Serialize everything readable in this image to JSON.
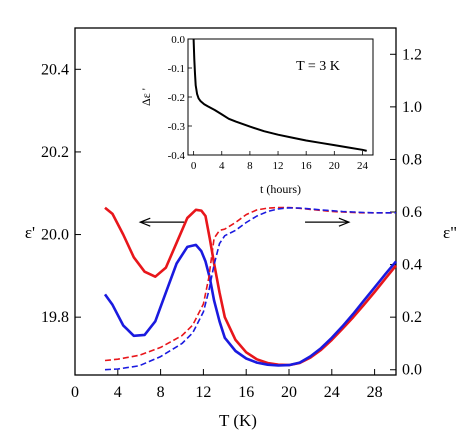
{
  "chart_data": {
    "type": "line",
    "xlabel": "T (K)",
    "ylabel_left": "ε'",
    "ylabel_right": "ε\"",
    "xlim": [
      0,
      30
    ],
    "ylim_left": [
      19.66,
      20.5
    ],
    "ylim_right": [
      -0.02,
      1.3
    ],
    "x_ticks": [
      0,
      4,
      8,
      12,
      16,
      20,
      24,
      28
    ],
    "y_ticks_left": [
      19.8,
      20.0,
      20.2,
      20.4
    ],
    "y_tick_labels_left": [
      "19.8",
      "20.0",
      "20.2",
      "20.4"
    ],
    "y_ticks_right": [
      0.0,
      0.2,
      0.4,
      0.6,
      0.8,
      1.0,
      1.2
    ],
    "y_tick_labels_right": [
      "0.0",
      "0.2",
      "0.4",
      "0.6",
      "0.8",
      "1.0",
      "1.2"
    ],
    "series": [
      {
        "color": "#e8161b",
        "style": "solid",
        "axis": "left",
        "x": [
          2.8,
          3.5,
          4.5,
          5.5,
          6.5,
          7.5,
          8.5,
          9.5,
          10.5,
          11.3,
          11.8,
          12.2,
          12.6,
          13.0,
          13.5,
          14.0,
          15.0,
          16.0,
          17.0,
          18.0,
          19.0,
          20.0,
          21.0,
          22.0,
          23.0,
          24.0,
          25.0,
          26.0,
          27.0,
          28.0,
          29.0,
          30.0
        ],
        "y": [
          20.065,
          20.05,
          20.0,
          19.945,
          19.91,
          19.898,
          19.92,
          19.98,
          20.04,
          20.06,
          20.058,
          20.045,
          19.99,
          19.93,
          19.86,
          19.8,
          19.745,
          19.715,
          19.698,
          19.689,
          19.685,
          19.684,
          19.689,
          19.702,
          19.721,
          19.745,
          19.772,
          19.8,
          19.83,
          19.861,
          19.893,
          19.925
        ]
      },
      {
        "color": "#1a1adf",
        "style": "solid",
        "axis": "left",
        "x": [
          2.8,
          3.5,
          4.5,
          5.5,
          6.5,
          7.5,
          8.5,
          9.5,
          10.5,
          11.3,
          11.8,
          12.2,
          12.6,
          13.0,
          13.5,
          14.0,
          15.0,
          16.0,
          17.0,
          18.0,
          19.0,
          20.0,
          21.0,
          22.0,
          23.0,
          24.0,
          25.0,
          26.0,
          27.0,
          28.0,
          29.0,
          30.0
        ],
        "y": [
          19.855,
          19.83,
          19.78,
          19.755,
          19.757,
          19.79,
          19.86,
          19.93,
          19.97,
          19.975,
          19.96,
          19.935,
          19.895,
          19.84,
          19.79,
          19.75,
          19.718,
          19.7,
          19.69,
          19.685,
          19.683,
          19.684,
          19.69,
          19.705,
          19.725,
          19.75,
          19.778,
          19.808,
          19.84,
          19.872,
          19.904,
          19.935
        ]
      },
      {
        "color": "#e8161b",
        "style": "dashed",
        "axis": "right",
        "x": [
          2.8,
          4,
          6,
          8,
          10,
          11,
          12,
          12.5,
          13,
          13.5,
          14,
          15,
          16,
          17,
          18,
          19,
          20,
          21,
          22,
          23,
          24,
          25,
          26,
          27,
          28,
          29,
          30
        ],
        "y": [
          0.035,
          0.04,
          0.055,
          0.085,
          0.13,
          0.17,
          0.25,
          0.35,
          0.5,
          0.53,
          0.535,
          0.56,
          0.59,
          0.608,
          0.615,
          0.617,
          0.617,
          0.614,
          0.61,
          0.606,
          0.602,
          0.6,
          0.598,
          0.597,
          0.597,
          0.597,
          0.597
        ]
      },
      {
        "color": "#1a1adf",
        "style": "dashed",
        "axis": "right",
        "x": [
          2.8,
          4,
          6,
          8,
          10,
          11,
          12,
          12.5,
          13,
          13.5,
          14,
          15,
          16,
          17,
          18,
          19,
          20,
          21,
          22,
          23,
          24,
          25,
          26,
          27,
          28,
          29,
          30
        ],
        "y": [
          0.0,
          0.003,
          0.015,
          0.05,
          0.1,
          0.14,
          0.22,
          0.3,
          0.4,
          0.48,
          0.51,
          0.53,
          0.56,
          0.585,
          0.602,
          0.612,
          0.616,
          0.615,
          0.612,
          0.608,
          0.605,
          0.602,
          0.6,
          0.598,
          0.597,
          0.597,
          0.597
        ]
      }
    ],
    "arrows": [
      {
        "from_x": 10.2,
        "to_x": 6.1,
        "y_left": 20.03,
        "color": "#000000"
      },
      {
        "from_x": 21.5,
        "to_x": 25.6,
        "y_left": 20.03,
        "color": "#000000"
      }
    ],
    "inset": {
      "type": "line",
      "annotation": "T = 3 K",
      "xlabel": "t (hours)",
      "ylabel": "Δε '",
      "xlim": [
        -0.8,
        25.5
      ],
      "ylim": [
        -0.4,
        0.0
      ],
      "x_ticks": [
        0,
        4,
        8,
        12,
        16,
        20,
        24
      ],
      "y_ticks": [
        0.0,
        -0.1,
        -0.2,
        -0.3,
        -0.4
      ],
      "y_tick_labels": [
        "0.0",
        "-0.1",
        "-0.2",
        "-0.3",
        "-0.4"
      ],
      "series": [
        {
          "color": "#000000",
          "x": [
            0.0,
            0.1,
            0.2,
            0.3,
            0.5,
            0.7,
            1.0,
            1.5,
            2.0,
            3.0,
            4.0,
            5.0,
            6.0,
            8.0,
            10.0,
            12.0,
            14.0,
            16.0,
            18.0,
            20.0,
            22.0,
            24.0,
            24.6
          ],
          "y": [
            0.0,
            -0.07,
            -0.12,
            -0.16,
            -0.19,
            -0.205,
            -0.215,
            -0.225,
            -0.232,
            -0.245,
            -0.26,
            -0.275,
            -0.285,
            -0.302,
            -0.318,
            -0.33,
            -0.34,
            -0.35,
            -0.358,
            -0.366,
            -0.374,
            -0.382,
            -0.386
          ]
        }
      ]
    }
  }
}
